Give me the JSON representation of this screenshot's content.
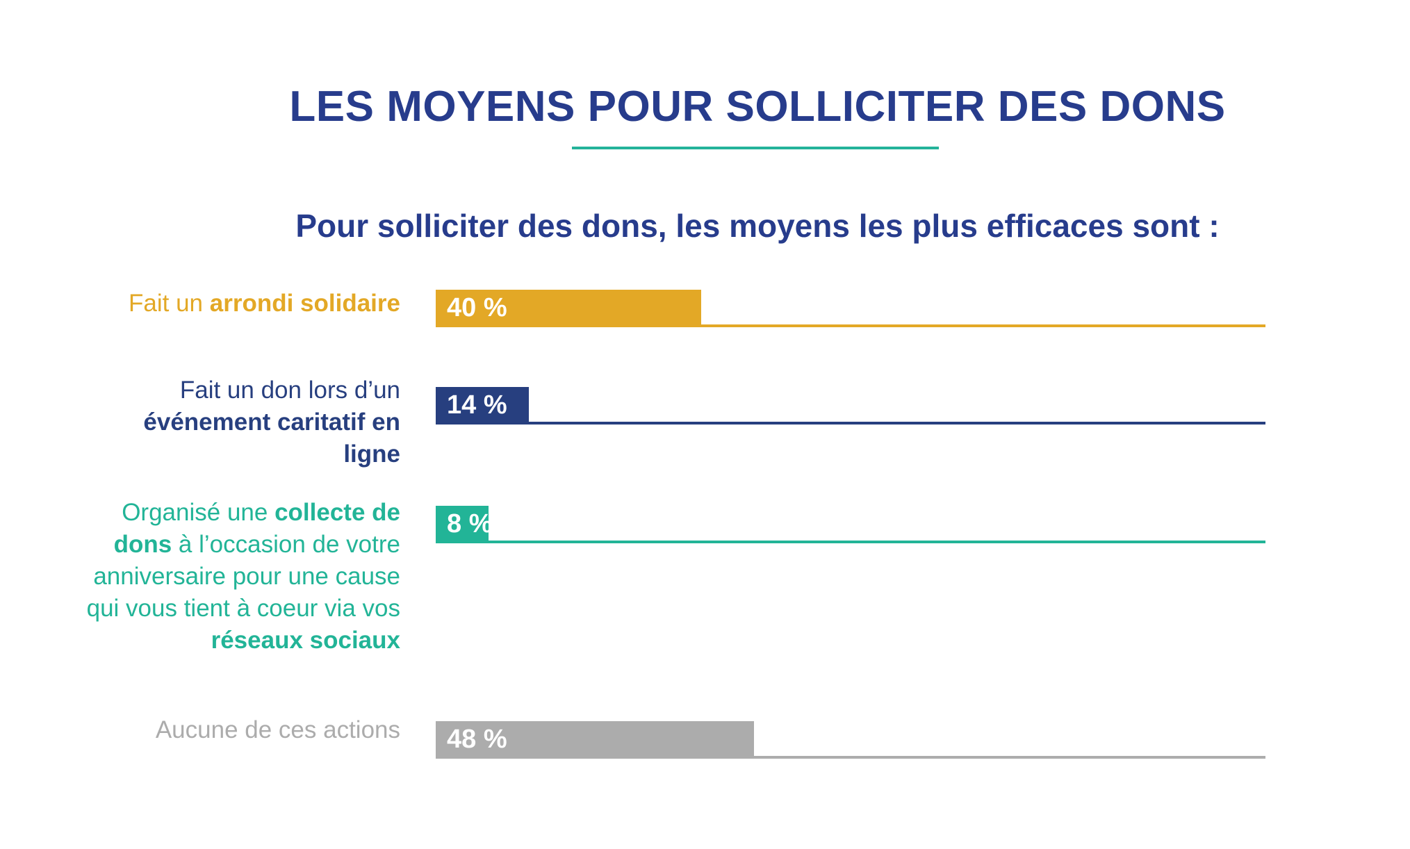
{
  "header": {
    "title": "LES MOYENS POUR SOLLICITER DES DONS",
    "subtitle": "Pour solliciter des dons, les moyens les plus efficaces sont :"
  },
  "chart_data": {
    "type": "bar",
    "orientation": "horizontal",
    "title": "Pour solliciter des dons, les moyens les plus efficaces sont :",
    "xlim": [
      0,
      100
    ],
    "categories": [
      "Fait un arrondi solidaire",
      "Fait un don lors d’un événement caritatif en ligne",
      "Organisé une collecte de dons à l’occasion de votre anniversaire pour une cause qui vous tient à coeur via vos réseaux sociaux",
      "Aucune de ces actions"
    ],
    "values": [
      40,
      14,
      8,
      48
    ],
    "value_labels": [
      "40 %",
      "14 %",
      "8 %",
      "48 %"
    ],
    "colors": [
      "#e3a826",
      "#273f7f",
      "#22b497",
      "#acacac"
    ],
    "grid": false,
    "legend": "none"
  },
  "rows": [
    {
      "label_parts": [
        {
          "text": "Fait un ",
          "bold": false
        },
        {
          "text": "arrondi solidaire",
          "bold": true
        }
      ]
    },
    {
      "label_parts": [
        {
          "text": "Fait un don lors d’un ",
          "bold": false
        },
        {
          "text": "événement caritatif en ligne",
          "bold": true
        }
      ]
    },
    {
      "label_parts": [
        {
          "text": "Organisé une ",
          "bold": false
        },
        {
          "text": "collecte de dons",
          "bold": true
        },
        {
          "text": " à l’occasion de votre anniversaire pour une cause qui vous tient à coeur via vos ",
          "bold": false
        },
        {
          "text": "réseaux sociaux",
          "bold": true
        }
      ]
    },
    {
      "label_parts": [
        {
          "text": "Aucune de ces actions",
          "bold": false
        }
      ]
    }
  ]
}
